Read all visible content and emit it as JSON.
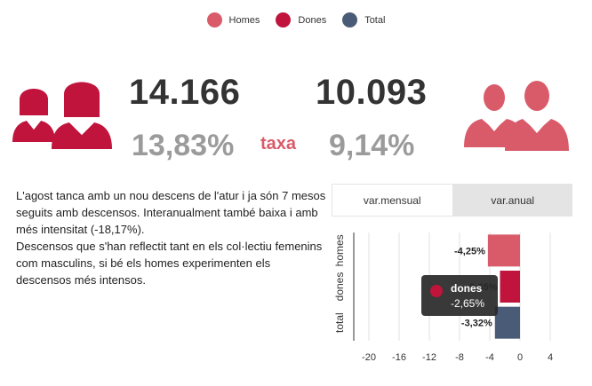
{
  "legend": [
    {
      "label": "Homes",
      "color": "#d95b6a"
    },
    {
      "label": "Dones",
      "color": "#c0143c"
    },
    {
      "label": "Total",
      "color": "#4a5b78"
    }
  ],
  "women": {
    "count": "14.166",
    "rate": "13,83%",
    "icon_color": "#c0143c"
  },
  "men": {
    "count": "10.093",
    "rate": "9,14%",
    "icon_color": "#d95b6a"
  },
  "taxa_label": "taxa",
  "description": [
    "L'agost tanca amb un nou descens de l'atur i ja són 7 mesos seguits amb descensos. Interanualment també baixa i amb més intensitat (-18,17%).",
    "Descensos que s'han reflectit tant en els col·lectiu femenins com masculins, si bé els homes experimenten els descensos més intensos."
  ],
  "tabs": [
    {
      "label": "var.mensual",
      "active": true
    },
    {
      "label": "var.anual",
      "active": false
    }
  ],
  "tooltip": {
    "name": "dones",
    "value": "-2,65%",
    "color": "#c0143c"
  },
  "chart_data": {
    "type": "bar",
    "orientation": "horizontal",
    "categories": [
      "homes",
      "dones",
      "total"
    ],
    "values": [
      -4.25,
      -2.65,
      -3.32
    ],
    "data_labels": [
      "-4,25%",
      "-2,65%",
      "-3,32%"
    ],
    "colors": [
      "#d95b6a",
      "#c0143c",
      "#4a5b78"
    ],
    "xlim": [
      -22,
      6
    ],
    "ticks": [
      -20,
      -16,
      -12,
      -8,
      -4,
      0,
      4
    ],
    "grid": true
  }
}
